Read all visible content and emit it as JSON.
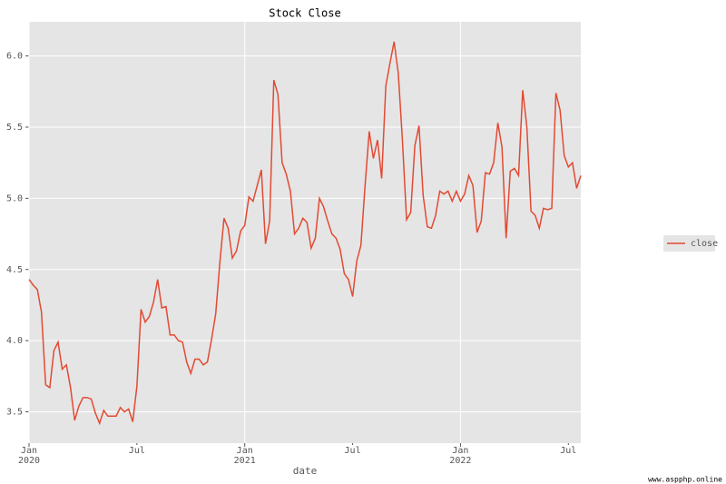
{
  "chart_data": {
    "type": "line",
    "title": "Stock Close",
    "xlabel": "date",
    "watermark": "www.aspphp.online",
    "series": [
      {
        "name": "close",
        "color": "#e24a33",
        "values": [
          4.43,
          4.39,
          4.36,
          4.2,
          3.69,
          3.67,
          3.93,
          3.99,
          3.8,
          3.83,
          3.67,
          3.44,
          3.54,
          3.6,
          3.6,
          3.59,
          3.49,
          3.42,
          3.51,
          3.47,
          3.47,
          3.47,
          3.53,
          3.5,
          3.52,
          3.43,
          3.68,
          4.22,
          4.13,
          4.17,
          4.27,
          4.43,
          4.23,
          4.24,
          4.04,
          4.04,
          4.0,
          3.99,
          3.85,
          3.77,
          3.87,
          3.87,
          3.83,
          3.85,
          4.01,
          4.19,
          4.55,
          4.86,
          4.79,
          4.58,
          4.63,
          4.77,
          4.81,
          5.01,
          4.98,
          5.09,
          5.2,
          4.68,
          4.84,
          5.83,
          5.73,
          5.25,
          5.17,
          5.05,
          4.75,
          4.79,
          4.86,
          4.83,
          4.65,
          4.72,
          5.0,
          4.94,
          4.84,
          4.75,
          4.72,
          4.64,
          4.47,
          4.43,
          4.31,
          4.56,
          4.67,
          5.09,
          5.47,
          5.28,
          5.41,
          5.14,
          5.79,
          5.95,
          6.1,
          5.88,
          5.41,
          4.85,
          4.9,
          5.37,
          5.51,
          5.02,
          4.8,
          4.79,
          4.88,
          5.05,
          5.03,
          5.05,
          4.98,
          5.05,
          4.98,
          5.03,
          5.16,
          5.09,
          4.76,
          4.84,
          5.18,
          5.17,
          5.25,
          5.53,
          5.36,
          4.72,
          5.19,
          5.21,
          5.16,
          5.76,
          5.5,
          4.91,
          4.88,
          4.79,
          4.93,
          4.92,
          4.93,
          5.74,
          5.62,
          5.3,
          5.22,
          5.25,
          5.07,
          5.16
        ]
      }
    ],
    "xlim": [
      0,
      133
    ],
    "xticks": [
      {
        "value": 0,
        "label": "Jan",
        "year": "2020"
      },
      {
        "value": 52,
        "label": "Jan",
        "year": "2021"
      },
      {
        "value": 104,
        "label": "Jan",
        "year": "2022"
      }
    ],
    "xticks_minor": [
      {
        "value": 26,
        "label": "Jul"
      },
      {
        "value": 78,
        "label": "Jul"
      },
      {
        "value": 130,
        "label": "Jul"
      }
    ],
    "ylim": [
      3.28,
      6.24
    ],
    "yticks": [
      3.5,
      {
        "value": 4,
        "label": "4.0"
      },
      4.5,
      {
        "value": 5,
        "label": "5.0"
      },
      5.5,
      {
        "value": 6,
        "label": "6.0"
      }
    ],
    "grid": true,
    "legend": "right"
  }
}
